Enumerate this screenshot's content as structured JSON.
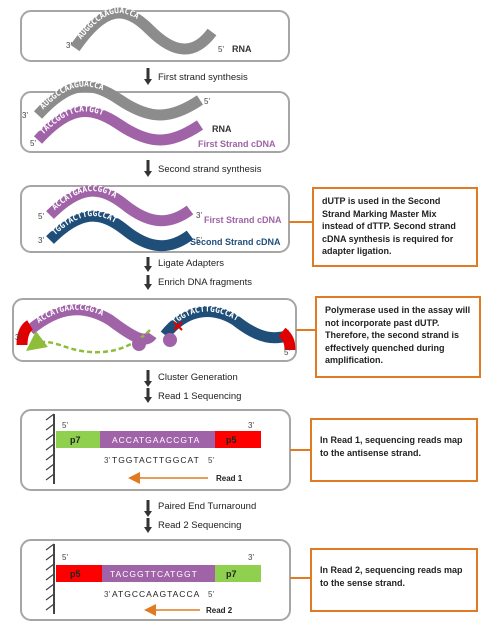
{
  "steps": {
    "first_strand": "First strand synthesis",
    "second_strand": "Second strand synthesis",
    "ligate": "Ligate Adapters",
    "enrich": "Enrich DNA fragments",
    "cluster": "Cluster Generation",
    "read1": "Read 1 Sequencing",
    "turnaround": "Paired End Turnaround",
    "read2": "Read 2 Sequencing"
  },
  "panel1": {
    "rna_label": "RNA",
    "rna_seq": "AUGGCCAAGUACCA",
    "end3": "3'",
    "end5": "5'"
  },
  "panel2": {
    "rna_label": "RNA",
    "cdna_label": "First Strand cDNA",
    "rna_seq": "AUGGCCAAGUACCA",
    "cdna_seq": "TACCGGTTCATGGT",
    "end3": "3'",
    "end5": "5'"
  },
  "panel3": {
    "first_label": "First Strand cDNA",
    "second_label": "Second Strand cDNA",
    "first_seq": "ACCATGAACCGGTA",
    "second_seq": "TGGTACTTGGCCAT",
    "end3": "3'",
    "end5": "5'"
  },
  "panel4": {
    "left_seq": "ACCATGAACCGGTA",
    "right_seq": "TGGTACTTGGCCAT",
    "end3": "3'",
    "end5": "5'"
  },
  "panel5": {
    "p7": "p7",
    "insert": "ACCATGAACCGTA",
    "p5": "p5",
    "read_seq": "TGGTACTTGGCAT",
    "read_label": "Read 1",
    "end3": "3'",
    "end5": "5'",
    "read_end3": "3'",
    "read_end5": "5'"
  },
  "panel6": {
    "p5": "p5",
    "insert": "TACGGTTCATGGT",
    "p7": "p7",
    "read_seq": "ATGCCAAGTACCA",
    "read_label": "Read 2",
    "end3": "3'",
    "end5": "5'",
    "read_end3": "3'",
    "read_end5": "5'"
  },
  "notes": {
    "n1": "dUTP is used in the Second Strand Marking Master Mix instead of dTTP.  Second strand cDNA synthesis is required for adapter ligation.",
    "n2": "Polymerase used in the assay will not incorporate past dUTP. Therefore, the second strand is effectively quenched during amplification.",
    "n3": "In Read 1, sequencing reads map to the  antisense strand.",
    "n4": "In Read 2, sequencing reads map to the  sense strand."
  },
  "colors": {
    "rna": "#8c8c8c",
    "first": "#a063a8",
    "second": "#1f4e79",
    "p7": "#8fd14f",
    "p5": "#ff0000",
    "insert": "#a063a8",
    "orange": "#e07b24",
    "dutp": "#8fbc3a"
  }
}
